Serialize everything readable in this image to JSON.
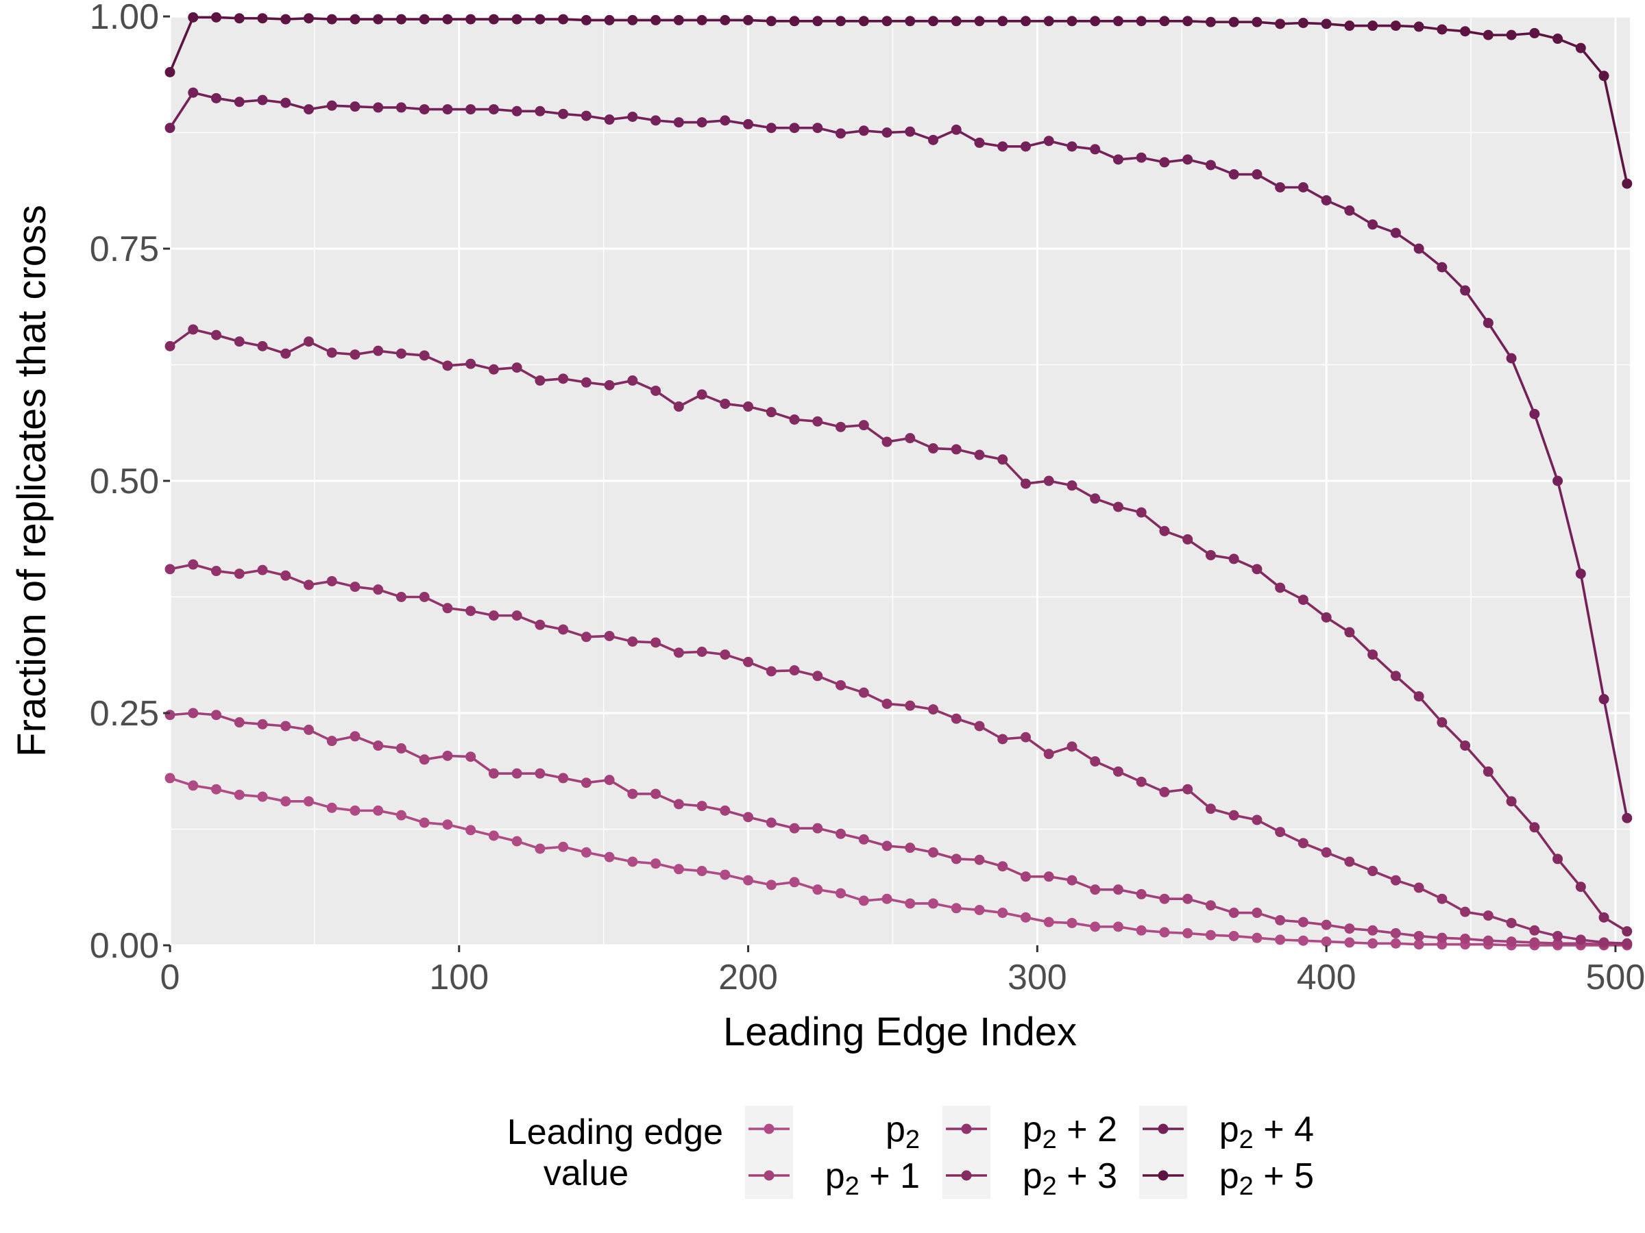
{
  "chart_data": {
    "type": "line",
    "title": "",
    "xlabel": "Leading Edge Index",
    "ylabel": "Fraction of replicates that cross",
    "xlim": [
      0,
      505
    ],
    "ylim": [
      0,
      1
    ],
    "x_ticks": [
      0,
      100,
      200,
      300,
      400,
      500
    ],
    "y_ticks": [
      0,
      0.25,
      0.5,
      0.75,
      1
    ],
    "x_tick_labels": [
      "0",
      "100",
      "200",
      "300",
      "400",
      "500"
    ],
    "y_tick_labels": [
      "0.00",
      "0.25",
      "0.50",
      "0.75",
      "1.00"
    ],
    "grid": true,
    "legend": {
      "title_lines": [
        "Leading edge",
        "value"
      ],
      "position": "bottom",
      "entries": [
        {
          "base": "p",
          "sub": "2",
          "suffix": ""
        },
        {
          "base": "p",
          "sub": "2",
          "suffix": " + 1"
        },
        {
          "base": "p",
          "sub": "2",
          "suffix": " + 2"
        },
        {
          "base": "p",
          "sub": "2",
          "suffix": " + 3"
        },
        {
          "base": "p",
          "sub": "2",
          "suffix": " + 4"
        },
        {
          "base": "p",
          "sub": "2",
          "suffix": " + 5"
        }
      ]
    },
    "x": [
      0,
      8,
      16,
      24,
      32,
      40,
      48,
      56,
      64,
      72,
      80,
      88,
      96,
      104,
      112,
      120,
      128,
      136,
      144,
      152,
      160,
      168,
      176,
      184,
      192,
      200,
      208,
      216,
      224,
      232,
      240,
      248,
      256,
      264,
      272,
      280,
      288,
      296,
      304,
      312,
      320,
      328,
      336,
      344,
      352,
      360,
      368,
      376,
      384,
      392,
      400,
      408,
      416,
      424,
      432,
      440,
      448,
      456,
      464,
      472,
      480,
      488,
      496,
      504
    ],
    "series": [
      {
        "color": "#b04a84",
        "values": [
          0.18,
          0.172,
          0.168,
          0.162,
          0.16,
          0.155,
          0.155,
          0.148,
          0.145,
          0.145,
          0.14,
          0.132,
          0.13,
          0.124,
          0.118,
          0.112,
          0.104,
          0.106,
          0.1,
          0.095,
          0.09,
          0.088,
          0.082,
          0.08,
          0.076,
          0.07,
          0.065,
          0.068,
          0.06,
          0.056,
          0.048,
          0.05,
          0.045,
          0.045,
          0.04,
          0.038,
          0.035,
          0.03,
          0.025,
          0.024,
          0.02,
          0.02,
          0.016,
          0.014,
          0.013,
          0.011,
          0.01,
          0.008,
          0.006,
          0.005,
          0.004,
          0.003,
          0.002,
          0.002,
          0.001,
          0.001,
          0.001,
          0.001,
          0.0,
          0.0,
          0.0,
          0.0,
          0.0,
          0.0
        ]
      },
      {
        "color": "#a44079",
        "values": [
          0.248,
          0.25,
          0.248,
          0.24,
          0.238,
          0.236,
          0.232,
          0.22,
          0.225,
          0.215,
          0.212,
          0.2,
          0.204,
          0.203,
          0.185,
          0.185,
          0.185,
          0.18,
          0.175,
          0.178,
          0.163,
          0.163,
          0.152,
          0.15,
          0.145,
          0.138,
          0.132,
          0.126,
          0.126,
          0.12,
          0.114,
          0.107,
          0.105,
          0.1,
          0.093,
          0.092,
          0.085,
          0.074,
          0.074,
          0.07,
          0.06,
          0.06,
          0.055,
          0.05,
          0.05,
          0.043,
          0.035,
          0.035,
          0.027,
          0.025,
          0.022,
          0.018,
          0.016,
          0.013,
          0.01,
          0.008,
          0.007,
          0.005,
          0.004,
          0.003,
          0.002,
          0.002,
          0.001,
          0.001
        ]
      },
      {
        "color": "#92336b",
        "values": [
          0.405,
          0.41,
          0.403,
          0.4,
          0.404,
          0.398,
          0.388,
          0.392,
          0.386,
          0.383,
          0.375,
          0.375,
          0.363,
          0.36,
          0.355,
          0.355,
          0.345,
          0.34,
          0.332,
          0.333,
          0.327,
          0.326,
          0.315,
          0.316,
          0.313,
          0.305,
          0.295,
          0.296,
          0.29,
          0.28,
          0.272,
          0.26,
          0.258,
          0.254,
          0.244,
          0.236,
          0.222,
          0.224,
          0.206,
          0.214,
          0.198,
          0.187,
          0.176,
          0.165,
          0.168,
          0.147,
          0.14,
          0.135,
          0.122,
          0.11,
          0.1,
          0.09,
          0.08,
          0.07,
          0.062,
          0.05,
          0.036,
          0.032,
          0.024,
          0.016,
          0.01,
          0.006,
          0.003,
          0.002
        ]
      },
      {
        "color": "#832a60",
        "values": [
          0.645,
          0.663,
          0.657,
          0.65,
          0.645,
          0.637,
          0.65,
          0.638,
          0.636,
          0.64,
          0.637,
          0.635,
          0.624,
          0.626,
          0.62,
          0.622,
          0.608,
          0.61,
          0.606,
          0.603,
          0.608,
          0.597,
          0.58,
          0.593,
          0.583,
          0.58,
          0.574,
          0.566,
          0.564,
          0.558,
          0.56,
          0.542,
          0.546,
          0.535,
          0.534,
          0.528,
          0.523,
          0.497,
          0.5,
          0.495,
          0.481,
          0.472,
          0.466,
          0.446,
          0.437,
          0.42,
          0.416,
          0.405,
          0.385,
          0.372,
          0.353,
          0.337,
          0.313,
          0.29,
          0.268,
          0.24,
          0.215,
          0.187,
          0.155,
          0.127,
          0.093,
          0.063,
          0.03,
          0.015
        ]
      },
      {
        "color": "#74215a",
        "values": [
          0.88,
          0.918,
          0.912,
          0.908,
          0.91,
          0.907,
          0.9,
          0.904,
          0.903,
          0.902,
          0.902,
          0.9,
          0.9,
          0.9,
          0.9,
          0.898,
          0.898,
          0.895,
          0.893,
          0.889,
          0.892,
          0.888,
          0.886,
          0.886,
          0.888,
          0.884,
          0.88,
          0.88,
          0.88,
          0.874,
          0.877,
          0.875,
          0.876,
          0.867,
          0.878,
          0.864,
          0.86,
          0.86,
          0.866,
          0.86,
          0.857,
          0.846,
          0.848,
          0.843,
          0.846,
          0.84,
          0.83,
          0.83,
          0.816,
          0.816,
          0.802,
          0.791,
          0.776,
          0.767,
          0.75,
          0.73,
          0.705,
          0.67,
          0.632,
          0.572,
          0.5,
          0.4,
          0.265,
          0.137
        ]
      },
      {
        "color": "#5e1443",
        "values": [
          0.94,
          0.999,
          0.999,
          0.998,
          0.998,
          0.997,
          0.998,
          0.997,
          0.997,
          0.997,
          0.997,
          0.997,
          0.997,
          0.997,
          0.997,
          0.997,
          0.997,
          0.997,
          0.996,
          0.996,
          0.996,
          0.996,
          0.996,
          0.996,
          0.996,
          0.996,
          0.995,
          0.995,
          0.995,
          0.995,
          0.995,
          0.995,
          0.995,
          0.995,
          0.995,
          0.995,
          0.995,
          0.995,
          0.995,
          0.995,
          0.995,
          0.995,
          0.995,
          0.995,
          0.995,
          0.994,
          0.994,
          0.994,
          0.992,
          0.993,
          0.992,
          0.99,
          0.99,
          0.99,
          0.989,
          0.986,
          0.984,
          0.98,
          0.98,
          0.982,
          0.976,
          0.966,
          0.936,
          0.82
        ]
      }
    ]
  }
}
